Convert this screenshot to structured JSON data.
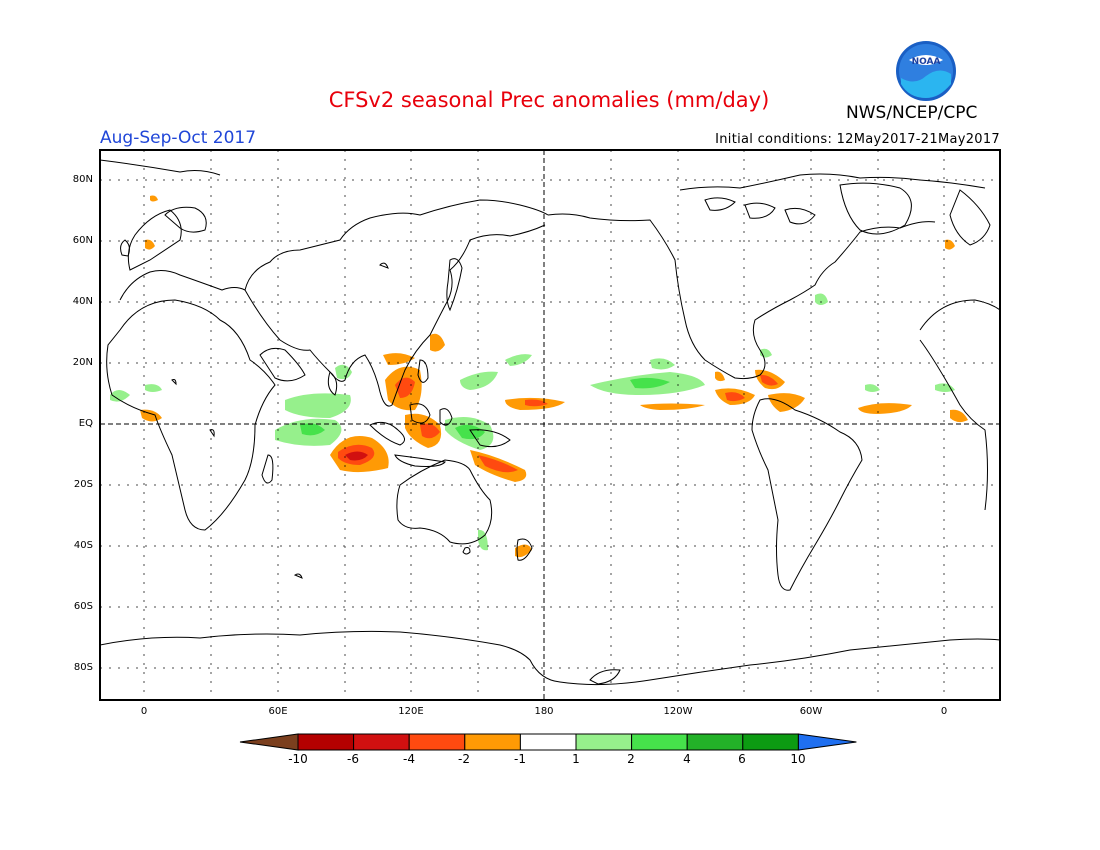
{
  "header": {
    "title": "CFSv2 seasonal Prec anomalies (mm/day)",
    "season": "Aug-Sep-Oct 2017",
    "agency": "NWS/NCEP/CPC",
    "init_conditions": "Initial conditions: 12May2017-21May2017",
    "logo_text": "NOAA"
  },
  "map": {
    "lat_labels": [
      "80N",
      "60N",
      "40N",
      "20N",
      "EQ",
      "20S",
      "40S",
      "60S",
      "80S"
    ],
    "lon_labels": [
      "0",
      "60E",
      "120E",
      "180",
      "120W",
      "60W",
      "0"
    ]
  },
  "legend": {
    "labels": [
      "-10",
      "-6",
      "-4",
      "-2",
      "-1",
      "1",
      "2",
      "4",
      "6",
      "10"
    ],
    "colors": [
      "#7b3f1e",
      "#b40000",
      "#d11010",
      "#ff4a10",
      "#ff9a05",
      "#ffffff",
      "#96f08c",
      "#46e24b",
      "#23b128",
      "#0c9b12",
      "#1f6ff0"
    ]
  }
}
